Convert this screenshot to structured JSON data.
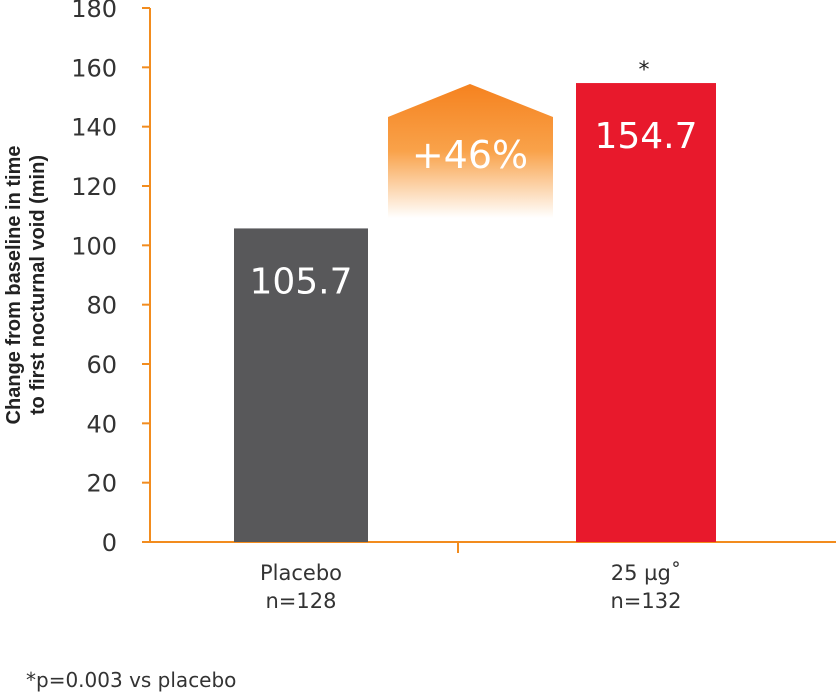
{
  "chart_data": {
    "type": "bar",
    "ylabel_line1": "Change from baseline in time",
    "ylabel_line2": "to first nocturnal void (min)",
    "ylim": [
      0,
      180
    ],
    "yticks": [
      0,
      20,
      40,
      60,
      80,
      100,
      120,
      140,
      160,
      180
    ],
    "categories": [
      {
        "line1": "Placebo",
        "line2": "n=128"
      },
      {
        "line1": "25 µg˚",
        "line2": "n=132"
      }
    ],
    "values": [
      105.7,
      154.7
    ],
    "value_labels": [
      "105.7",
      "154.7"
    ],
    "bar_colors": [
      "#58585a",
      "#e8192c"
    ],
    "significance_marks": [
      "",
      "*"
    ],
    "difference_label": "+46%",
    "axis_color": "#f28c1e",
    "accent_gradient": [
      "#f5821f",
      "#ffffff"
    ],
    "grid": false,
    "legend": "none"
  },
  "footnote": "*p=0.003 vs placebo"
}
